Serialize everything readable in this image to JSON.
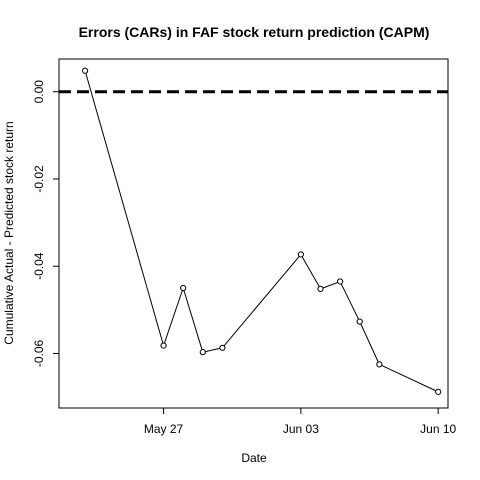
{
  "chart_data": {
    "type": "line",
    "title": "Errors (CARs) in FAF stock return prediction (CAPM)",
    "xlabel": "Date",
    "ylabel": "Cumulative Actual - Predicted stock return",
    "x_tick_labels": [
      "May 27",
      "Jun 03",
      "Jun 10"
    ],
    "x_tick_dates": [
      "2016-05-27",
      "2016-06-03",
      "2016-06-10"
    ],
    "y_tick_labels": [
      "0.00",
      "-0.02",
      "-0.04",
      "-0.06"
    ],
    "y_ticks": [
      0.0,
      -0.02,
      -0.04,
      -0.06
    ],
    "xlim": [
      "2016-05-22",
      "2016-06-10"
    ],
    "ylim": [
      -0.0725,
      0.0075
    ],
    "reference_line": {
      "y": 0.0,
      "style": "dashed"
    },
    "series": [
      {
        "x": [
          "2016-05-23",
          "2016-05-24",
          "2016-05-25",
          "2016-05-26",
          "2016-05-27",
          "2016-05-28",
          "2016-05-29",
          "2016-05-30",
          "2016-05-31",
          "2016-06-01",
          "2016-06-02",
          "2016-06-03",
          "2016-06-04",
          "2016-06-05",
          "2016-06-06",
          "2016-06-07",
          "2016-06-08",
          "2016-06-09",
          "2016-06-10"
        ],
        "y": [
          0.0048,
          null,
          null,
          null,
          -0.0582,
          -0.045,
          -0.0597,
          -0.0587,
          null,
          null,
          null,
          -0.0373,
          -0.0452,
          -0.0435,
          -0.0527,
          -0.0625,
          null,
          null,
          -0.0688
        ]
      }
    ],
    "grid": false,
    "legend": "none"
  }
}
